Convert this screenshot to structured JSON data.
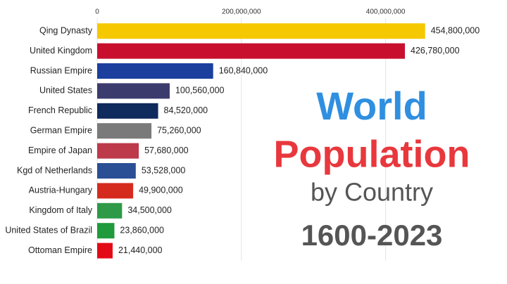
{
  "chart_data": {
    "type": "bar",
    "orientation": "horizontal",
    "annotations": [
      "World",
      "Population",
      "by Country",
      "1600-2023"
    ],
    "annotation_colors": [
      "#2f8fe0",
      "#e8383d",
      "#555555",
      "#555555"
    ],
    "categories": [
      "Qing Dynasty",
      "United Kingdom",
      "Russian Empire",
      "United States",
      "French Republic",
      "German Empire",
      "Empire of Japan",
      "Kgd of Netherlands",
      "Austria-Hungary",
      "Kingdom of Italy",
      "United States of Brazil",
      "Ottoman Empire"
    ],
    "values": [
      454800000,
      426780000,
      160840000,
      100560000,
      84520000,
      75260000,
      57680000,
      53528000,
      49900000,
      34500000,
      23860000,
      21440000
    ],
    "value_labels": [
      "454,800,000",
      "426,780,000",
      "160,840,000",
      "100,560,000",
      "84,520,000",
      "75,260,000",
      "57,680,000",
      "53,528,000",
      "49,900,000",
      "34,500,000",
      "23,860,000",
      "21,440,000"
    ],
    "colors": [
      "#f5c800",
      "#c8102e",
      "#1c3f9e",
      "#3c3b6e",
      "#0f2a5c",
      "#7a7a7a",
      "#bc3a4a",
      "#2a4f95",
      "#d52b1e",
      "#2e9a48",
      "#1f9a3c",
      "#e30a17"
    ],
    "xlim": [
      0,
      500000000
    ],
    "xticks": [
      0,
      {
        "value": 200000000,
        "label": "200,000,000"
      },
      {
        "value": 400000000,
        "label": "400,000,000"
      }
    ],
    "grid": true
  }
}
